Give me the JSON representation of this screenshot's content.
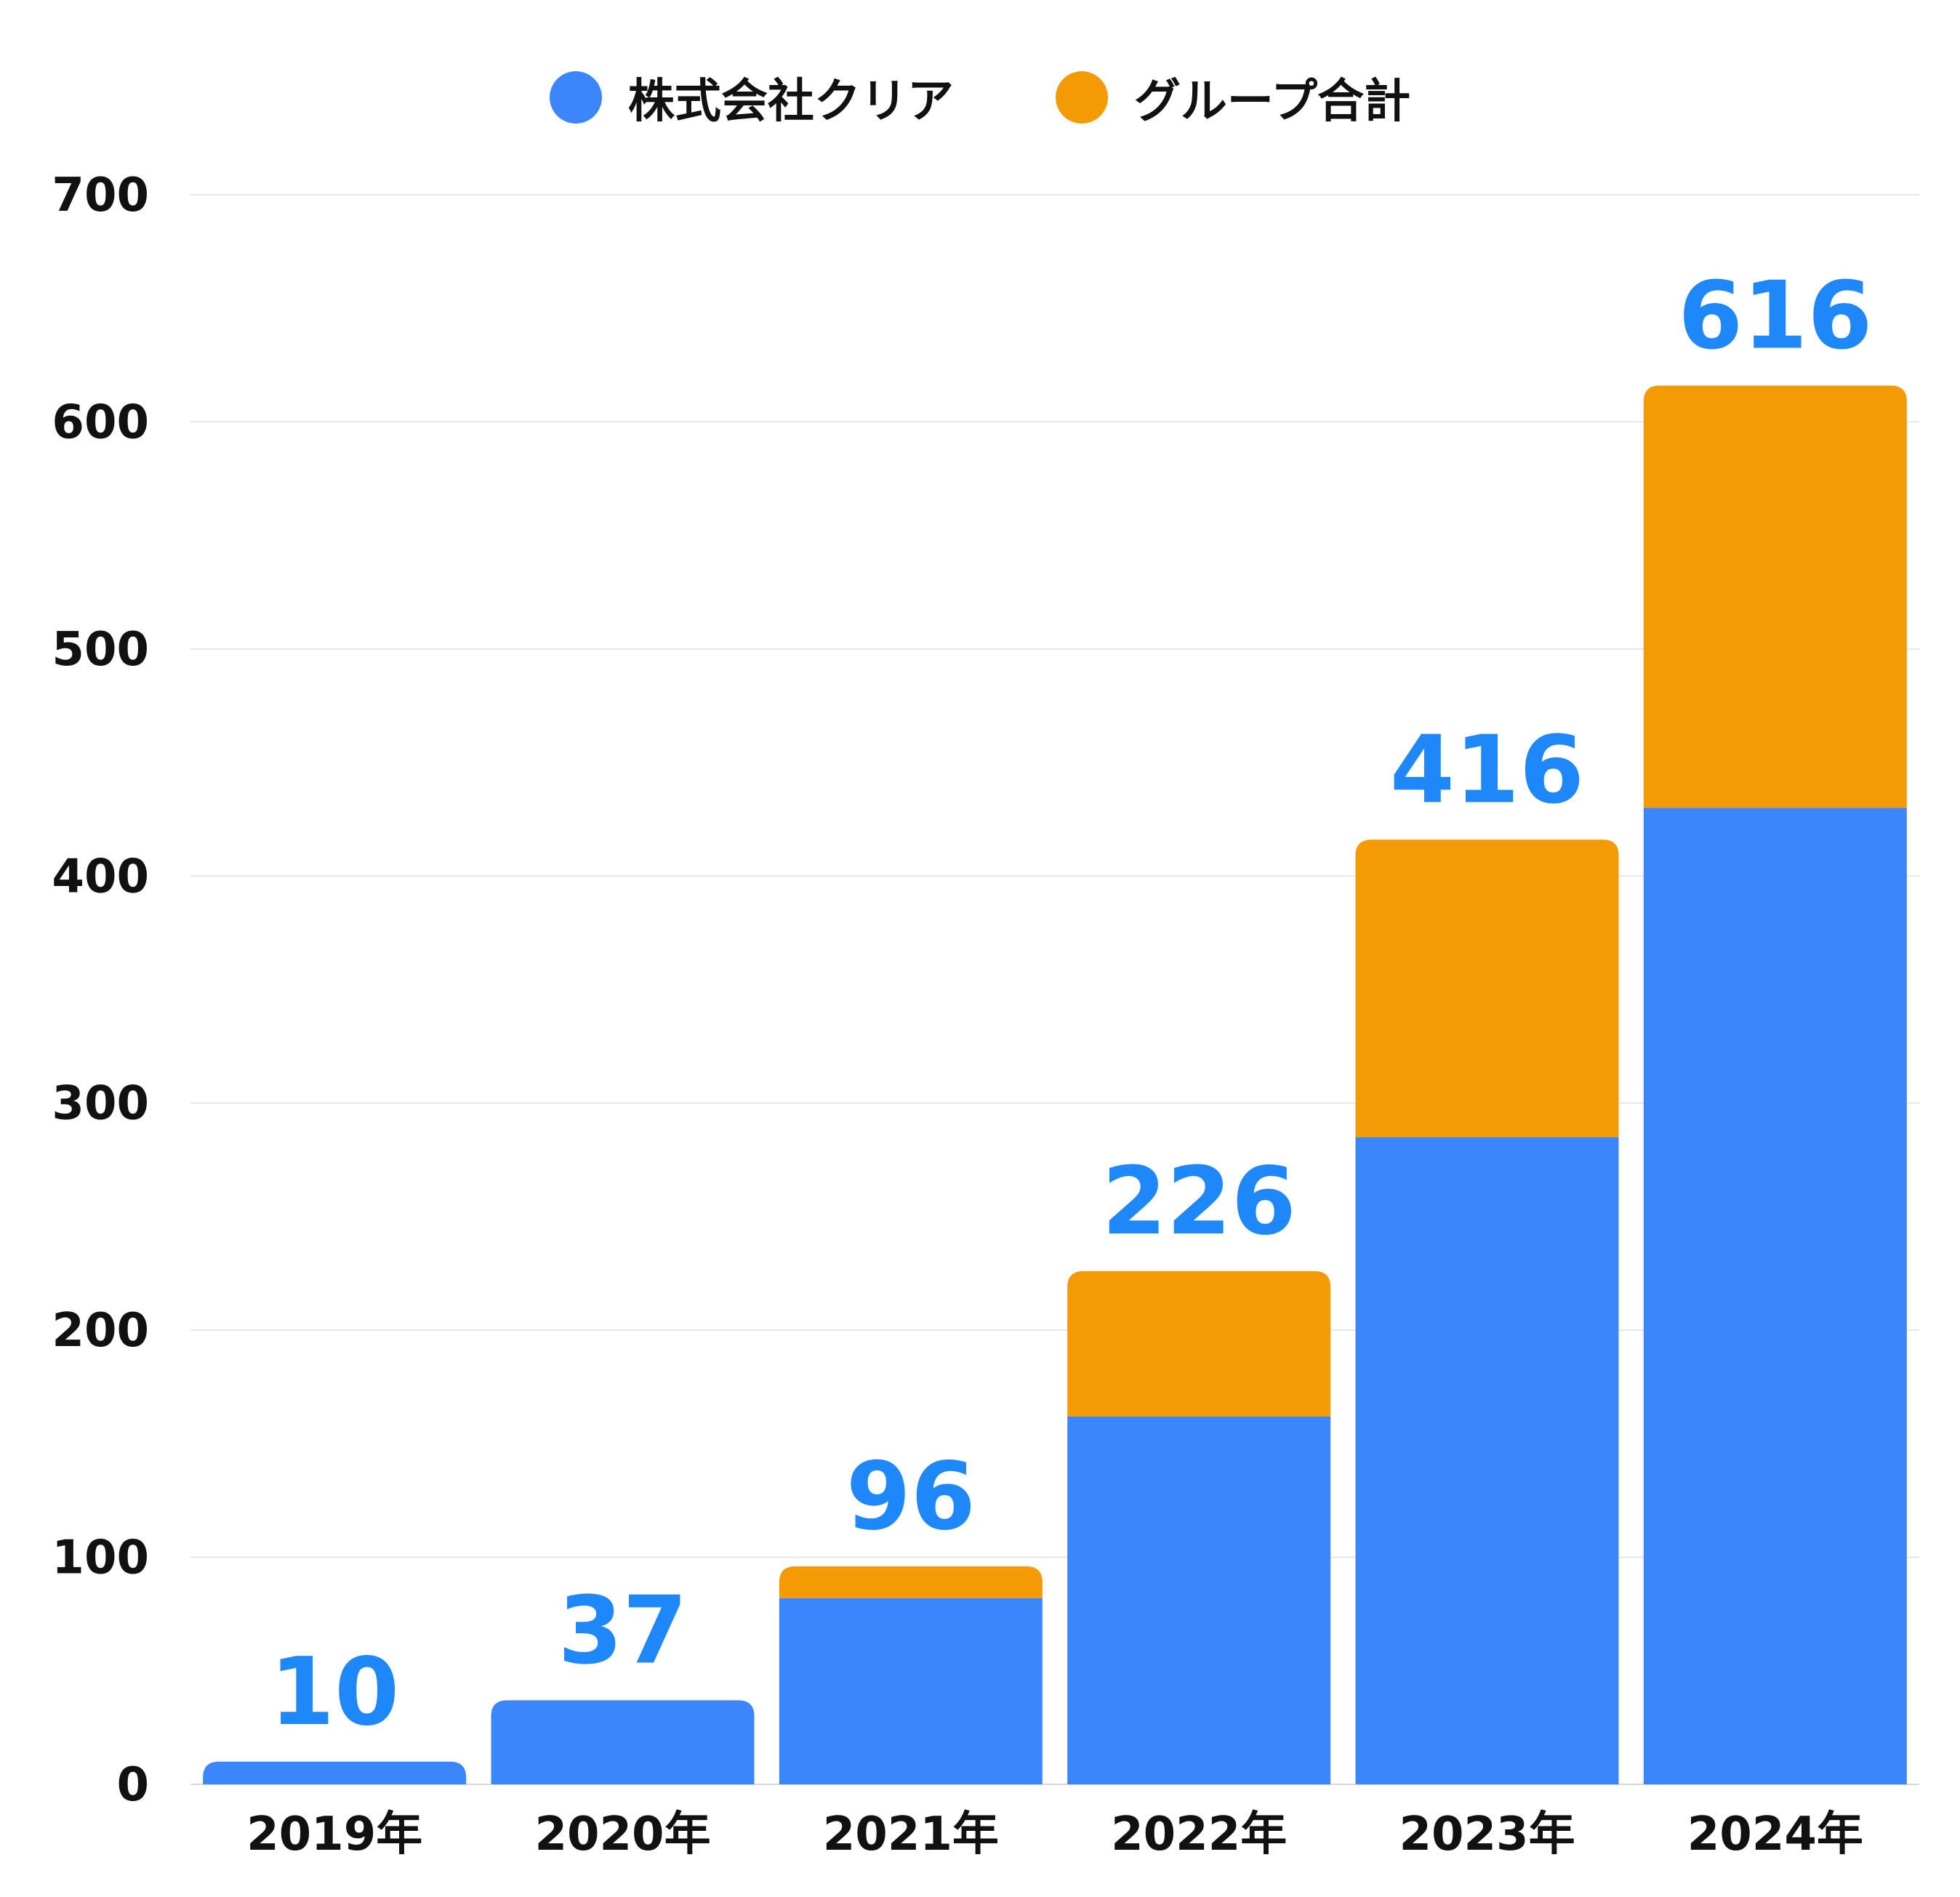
{
  "chart_data": {
    "type": "bar",
    "stacked": true,
    "categories": [
      "2019年",
      "2020年",
      "2021年",
      "2022年",
      "2023年",
      "2024年"
    ],
    "series": [
      {
        "name": "株式会社クリア",
        "color": "#3B86FB",
        "values": [
          10,
          37,
          82,
          162,
          285,
          430
        ]
      },
      {
        "name": "グループ合計",
        "color": "#F39A05",
        "values": [
          0,
          0,
          14,
          64,
          131,
          186
        ]
      }
    ],
    "totals": [
      "10",
      "37",
      "96",
      "226",
      "416",
      "616"
    ],
    "total_label_color": "#1E88FA",
    "yticks": [
      "0",
      "100",
      "200",
      "300",
      "400",
      "500",
      "600",
      "700"
    ],
    "ylim": [
      0,
      700
    ],
    "grid": true,
    "legend_position": "top-center"
  }
}
